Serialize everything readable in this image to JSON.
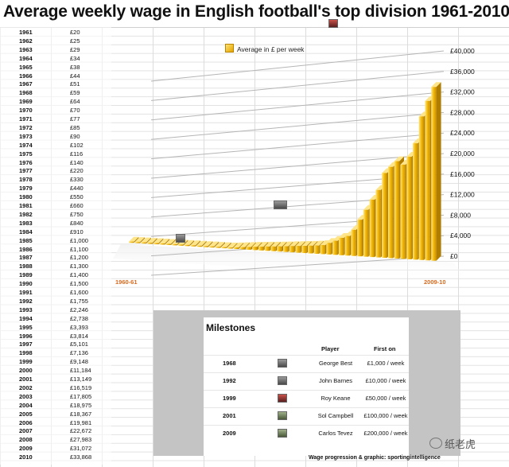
{
  "title": "Average weekly wage in English football's top division 1961-2010",
  "wage_table": [
    {
      "year": "1961",
      "wage": "£20"
    },
    {
      "year": "1962",
      "wage": "£25"
    },
    {
      "year": "1963",
      "wage": "£29"
    },
    {
      "year": "1964",
      "wage": "£34"
    },
    {
      "year": "1965",
      "wage": "£38"
    },
    {
      "year": "1966",
      "wage": "£44"
    },
    {
      "year": "1967",
      "wage": "£51"
    },
    {
      "year": "1968",
      "wage": "£59"
    },
    {
      "year": "1969",
      "wage": "£64"
    },
    {
      "year": "1970",
      "wage": "£70"
    },
    {
      "year": "1971",
      "wage": "£77"
    },
    {
      "year": "1972",
      "wage": "£85"
    },
    {
      "year": "1973",
      "wage": "£90"
    },
    {
      "year": "1974",
      "wage": "£102"
    },
    {
      "year": "1975",
      "wage": "£116"
    },
    {
      "year": "1976",
      "wage": "£140"
    },
    {
      "year": "1977",
      "wage": "£220"
    },
    {
      "year": "1978",
      "wage": "£330"
    },
    {
      "year": "1979",
      "wage": "£440"
    },
    {
      "year": "1980",
      "wage": "£550"
    },
    {
      "year": "1981",
      "wage": "£660"
    },
    {
      "year": "1982",
      "wage": "£750"
    },
    {
      "year": "1983",
      "wage": "£840"
    },
    {
      "year": "1984",
      "wage": "£910"
    },
    {
      "year": "1985",
      "wage": "£1,000"
    },
    {
      "year": "1986",
      "wage": "£1,100"
    },
    {
      "year": "1987",
      "wage": "£1,200"
    },
    {
      "year": "1988",
      "wage": "£1,300"
    },
    {
      "year": "1989",
      "wage": "£1,400"
    },
    {
      "year": "1990",
      "wage": "£1,500"
    },
    {
      "year": "1991",
      "wage": "£1,600"
    },
    {
      "year": "1992",
      "wage": "£1,755"
    },
    {
      "year": "1993",
      "wage": "£2,246"
    },
    {
      "year": "1994",
      "wage": "£2,738"
    },
    {
      "year": "1995",
      "wage": "£3,393"
    },
    {
      "year": "1996",
      "wage": "£3,814"
    },
    {
      "year": "1997",
      "wage": "£5,101"
    },
    {
      "year": "1998",
      "wage": "£7,136"
    },
    {
      "year": "1999",
      "wage": "£9,148"
    },
    {
      "year": "2000",
      "wage": "£11,184"
    },
    {
      "year": "2001",
      "wage": "£13,149"
    },
    {
      "year": "2002",
      "wage": "£16,519"
    },
    {
      "year": "2003",
      "wage": "£17,805"
    },
    {
      "year": "2004",
      "wage": "£18,975"
    },
    {
      "year": "2005",
      "wage": "£18,367"
    },
    {
      "year": "2006",
      "wage": "£19,981"
    },
    {
      "year": "2007",
      "wage": "£22,672"
    },
    {
      "year": "2008",
      "wage": "£27,983"
    },
    {
      "year": "2009",
      "wage": "£31,072"
    },
    {
      "year": "2010",
      "wage": "£33,868"
    }
  ],
  "chart_data": {
    "type": "bar",
    "title": "Average weekly wage in English football's top division 1961-2010",
    "legend": "Average in £ per week",
    "legend_position": "top",
    "x_start_label": "1960-61",
    "x_end_label": "2009-10",
    "categories": [
      "1961",
      "1962",
      "1963",
      "1964",
      "1965",
      "1966",
      "1967",
      "1968",
      "1969",
      "1970",
      "1971",
      "1972",
      "1973",
      "1974",
      "1975",
      "1976",
      "1977",
      "1978",
      "1979",
      "1980",
      "1981",
      "1982",
      "1983",
      "1984",
      "1985",
      "1986",
      "1987",
      "1988",
      "1989",
      "1990",
      "1991",
      "1992",
      "1993",
      "1994",
      "1995",
      "1996",
      "1997",
      "1998",
      "1999",
      "2000",
      "2001",
      "2002",
      "2003",
      "2004",
      "2005",
      "2006",
      "2007",
      "2008",
      "2009",
      "2010"
    ],
    "values": [
      20,
      25,
      29,
      34,
      38,
      44,
      51,
      59,
      64,
      70,
      77,
      85,
      90,
      102,
      116,
      140,
      220,
      330,
      440,
      550,
      660,
      750,
      840,
      910,
      1000,
      1100,
      1200,
      1300,
      1400,
      1500,
      1600,
      1755,
      2246,
      2738,
      3393,
      3814,
      5101,
      7136,
      9148,
      11184,
      13149,
      16519,
      17805,
      18975,
      18367,
      19981,
      22672,
      27983,
      31072,
      33868
    ],
    "ylim": [
      0,
      40000
    ],
    "yticks": [
      "£0",
      "£4,000",
      "£8,000",
      "£12,000",
      "£16,000",
      "£20,000",
      "£24,000",
      "£28,000",
      "£32,000",
      "£36,000",
      "£40,000"
    ],
    "bar_color": "#f2b705",
    "grid": true
  },
  "milestones": {
    "title": "Milestones",
    "header_player": "Player",
    "header_first_on": "First on",
    "rows": [
      {
        "year": "1968",
        "player": "George Best",
        "pay": "£1,000 / week"
      },
      {
        "year": "1992",
        "player": "John Barnes",
        "pay": "£10,000 / week"
      },
      {
        "year": "1999",
        "player": "Roy Keane",
        "pay": "£50,000 / week"
      },
      {
        "year": "2001",
        "player": "Sol Campbell",
        "pay": "£100,000 / week"
      },
      {
        "year": "2009",
        "player": "Carlos Tevez",
        "pay": "£200,000 / week"
      }
    ]
  },
  "credit": "Wage progression & graphic: sportingintelligence",
  "watermark": "纸老虎"
}
